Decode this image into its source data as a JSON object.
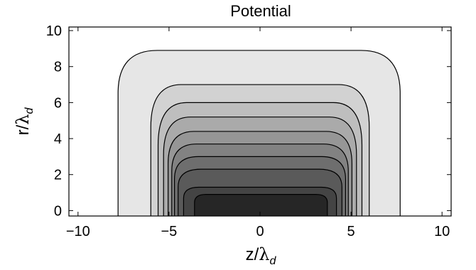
{
  "chart_data": {
    "type": "contour",
    "title": "Potential",
    "xlabel": {
      "main": "z/",
      "greek": "λ",
      "sub": "d"
    },
    "ylabel": {
      "main": "r/",
      "greek": "λ",
      "sub": "d"
    },
    "xlim": [
      -10.5,
      10.5
    ],
    "ylim": [
      -0.3,
      10.2
    ],
    "xticks": [
      -10,
      -5,
      0,
      5,
      10
    ],
    "xtick_labels": [
      "−10",
      "−5",
      "0",
      "5",
      "10"
    ],
    "yticks": [
      0,
      2,
      4,
      6,
      8,
      10
    ],
    "ytick_labels": [
      "0",
      "2",
      "4",
      "6",
      "8",
      "10"
    ],
    "grid": false,
    "contour_levels": [
      {
        "z_min": -7.8,
        "z_max": 7.7,
        "r_top": 8.9,
        "fill": "#e6e6e6"
      },
      {
        "z_min": -6.0,
        "z_max": 6.0,
        "r_top": 7.0,
        "fill": "#d2d2d2"
      },
      {
        "z_min": -5.6,
        "z_max": 5.6,
        "r_top": 6.0,
        "fill": "#bebebe"
      },
      {
        "z_min": -5.3,
        "z_max": 5.3,
        "r_top": 5.2,
        "fill": "#aaaaaa"
      },
      {
        "z_min": -5.05,
        "z_max": 5.05,
        "r_top": 4.4,
        "fill": "#969696"
      },
      {
        "z_min": -4.85,
        "z_max": 4.85,
        "r_top": 3.7,
        "fill": "#828282"
      },
      {
        "z_min": -4.7,
        "z_max": 4.7,
        "r_top": 3.0,
        "fill": "#6e6e6e"
      },
      {
        "z_min": -4.5,
        "z_max": 4.5,
        "r_top": 2.3,
        "fill": "#5a5a5a"
      },
      {
        "z_min": -4.2,
        "z_max": 4.2,
        "r_top": 1.3,
        "fill": "#444444"
      },
      {
        "z_min": -3.6,
        "z_max": 3.7,
        "r_top": 0.9,
        "fill": "#262626"
      }
    ],
    "contour_line_color": "#000000"
  }
}
